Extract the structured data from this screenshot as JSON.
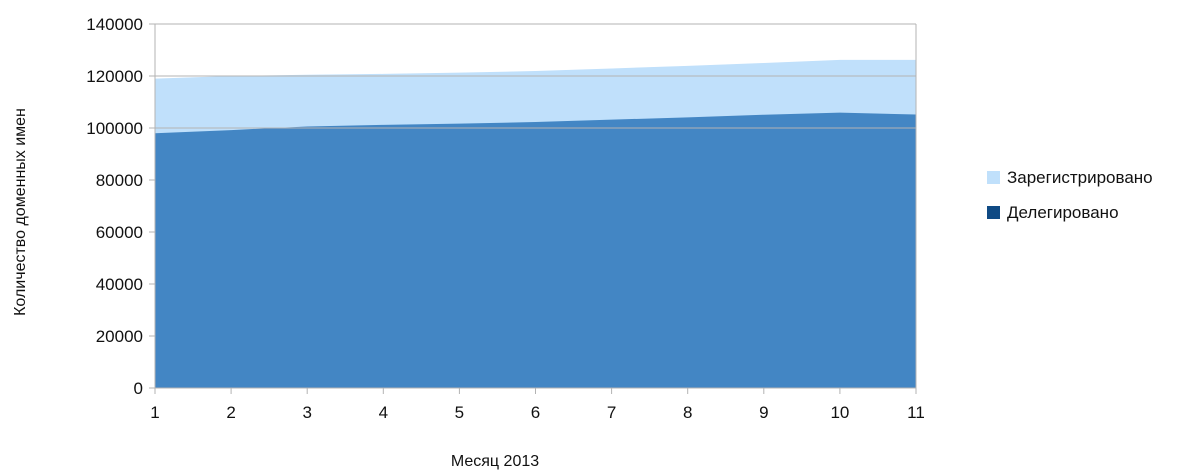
{
  "chart_data": {
    "type": "area",
    "stacked": false,
    "xlabel": "Месяц 2013",
    "ylabel": "Количество доменных имен",
    "x": [
      1,
      2,
      3,
      4,
      5,
      6,
      7,
      8,
      9,
      10,
      11
    ],
    "ylim": [
      0,
      140000
    ],
    "yticks": [
      0,
      20000,
      40000,
      60000,
      80000,
      100000,
      120000,
      140000
    ],
    "grid": "horizontal lines at 100000 and 120000",
    "legend_position": "right",
    "series": [
      {
        "name": "Зарегистрировано",
        "color": "#c0e0fb",
        "values": [
          119000,
          120000,
          120500,
          120800,
          121300,
          121900,
          122900,
          123900,
          125000,
          126200,
          126200
        ]
      },
      {
        "name": "Делегировано",
        "color": "#4386c4",
        "legend_color": "#0f4a84",
        "values": [
          98000,
          99200,
          100600,
          101200,
          101700,
          102300,
          103200,
          104100,
          105100,
          105900,
          105200
        ]
      }
    ]
  }
}
